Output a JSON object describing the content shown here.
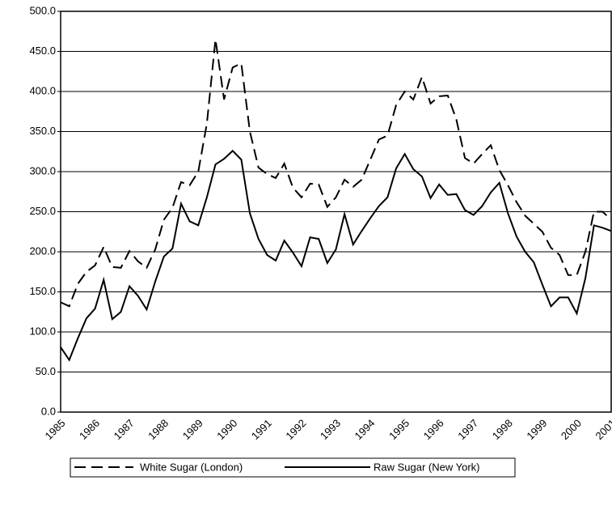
{
  "chart_data": {
    "type": "line",
    "categories": [
      "1985",
      null,
      null,
      null,
      "1986",
      null,
      null,
      null,
      "1987",
      null,
      null,
      null,
      "1988",
      null,
      null,
      null,
      "1989",
      null,
      null,
      null,
      "1990",
      null,
      null,
      null,
      "1991",
      null,
      null,
      null,
      "1992",
      null,
      null,
      null,
      "1993",
      null,
      null,
      null,
      "1994",
      null,
      null,
      null,
      "1995",
      null,
      null,
      null,
      "1996",
      null,
      null,
      null,
      "1997",
      null,
      null,
      null,
      "1998",
      null,
      null,
      null,
      "1999",
      null,
      null,
      null,
      "2000",
      null,
      null,
      null,
      "2001"
    ],
    "series": [
      {
        "name": "White Sugar (London)",
        "color": "#000000",
        "dash": "dashed",
        "values": [
          137,
          132,
          160,
          175,
          183,
          206,
          181,
          180,
          201,
          188,
          180,
          203,
          240,
          255,
          287,
          283,
          300,
          360,
          465,
          390,
          430,
          435,
          350,
          305,
          297,
          292,
          310,
          280,
          268,
          285,
          284,
          256,
          268,
          290,
          281,
          290,
          315,
          340,
          345,
          383,
          400,
          390,
          418,
          385,
          394,
          395,
          365,
          317,
          310,
          322,
          333,
          302,
          283,
          262,
          245,
          235,
          225,
          205,
          196,
          171,
          171,
          200,
          250,
          250,
          240
        ]
      },
      {
        "name": "Raw Sugar (New York)",
        "color": "#000000",
        "dash": "solid",
        "values": [
          81,
          65,
          92,
          117,
          129,
          165,
          116,
          125,
          157,
          145,
          128,
          163,
          194,
          204,
          260,
          238,
          233,
          268,
          309,
          316,
          326,
          315,
          248,
          216,
          196,
          189,
          214,
          199,
          182,
          218,
          216,
          186,
          203,
          247,
          209,
          226,
          242,
          257,
          268,
          304,
          322,
          303,
          294,
          267,
          284,
          271,
          272,
          252,
          246,
          257,
          274,
          286,
          248,
          219,
          200,
          187,
          159,
          132,
          143,
          143,
          123,
          167,
          233,
          230,
          226
        ]
      }
    ],
    "ylim": [
      0,
      500
    ],
    "yticks": [
      {
        "value": 0,
        "label": "0.0"
      },
      {
        "value": 50,
        "label": "50.0"
      },
      {
        "value": 100,
        "label": "100.0"
      },
      {
        "value": 150,
        "label": "150.0"
      },
      {
        "value": 200,
        "label": "200.0"
      },
      {
        "value": 250,
        "label": "250.0"
      },
      {
        "value": 300,
        "label": "300.0"
      },
      {
        "value": 350,
        "label": "350.0"
      },
      {
        "value": 400,
        "label": "400.0"
      },
      {
        "value": 450,
        "label": "450.0"
      },
      {
        "value": 500,
        "label": "500.0"
      }
    ],
    "grid": true
  }
}
